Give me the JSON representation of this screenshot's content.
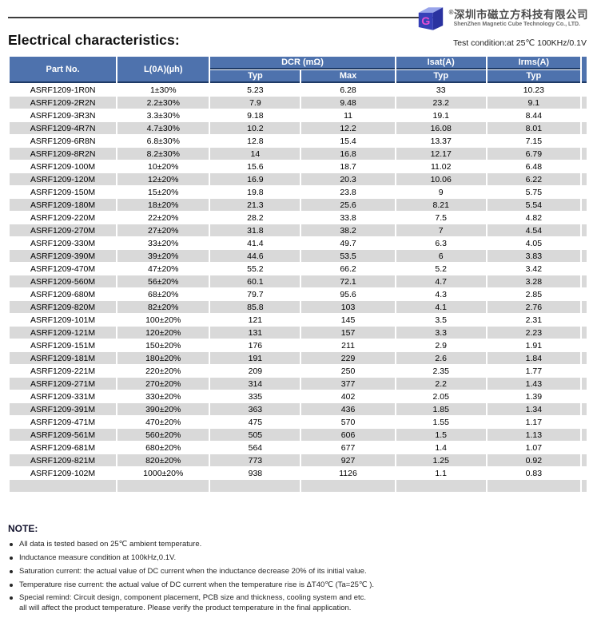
{
  "header": {
    "reg_mark": "®",
    "company_cn": "深圳市磁立方科技有限公司",
    "company_en": "ShenZhen Magnetic Cube Technology Co., LTD.",
    "title": "Electrical characteristics:",
    "test_condition": "Test condition:at 25℃ 100KHz/0.1V"
  },
  "table": {
    "columns": {
      "part_no": "Part No.",
      "l0a": "L(0A)(µh)",
      "dcr": "DCR (mΩ)",
      "typ": "Typ",
      "max": "Max",
      "isat": "Isat(A)",
      "irms": "Irms(A)"
    },
    "rows": [
      [
        "ASRF1209-1R0N",
        "1±30%",
        "5.23",
        "6.28",
        "33",
        "10.23"
      ],
      [
        "ASRF1209-2R2N",
        "2.2±30%",
        "7.9",
        "9.48",
        "23.2",
        "9.1"
      ],
      [
        "ASRF1209-3R3N",
        "3.3±30%",
        "9.18",
        "11",
        "19.1",
        "8.44"
      ],
      [
        "ASRF1209-4R7N",
        "4.7±30%",
        "10.2",
        "12.2",
        "16.08",
        "8.01"
      ],
      [
        "ASRF1209-6R8N",
        "6.8±30%",
        "12.8",
        "15.4",
        "13.37",
        "7.15"
      ],
      [
        "ASRF1209-8R2N",
        "8.2±30%",
        "14",
        "16.8",
        "12.17",
        "6.79"
      ],
      [
        "ASRF1209-100M",
        "10±20%",
        "15.6",
        "18.7",
        "11.02",
        "6.48"
      ],
      [
        "ASRF1209-120M",
        "12±20%",
        "16.9",
        "20.3",
        "10.06",
        "6.22"
      ],
      [
        "ASRF1209-150M",
        "15±20%",
        "19.8",
        "23.8",
        "9",
        "5.75"
      ],
      [
        "ASRF1209-180M",
        "18±20%",
        "21.3",
        "25.6",
        "8.21",
        "5.54"
      ],
      [
        "ASRF1209-220M",
        "22±20%",
        "28.2",
        "33.8",
        "7.5",
        "4.82"
      ],
      [
        "ASRF1209-270M",
        "27±20%",
        "31.8",
        "38.2",
        "7",
        "4.54"
      ],
      [
        "ASRF1209-330M",
        "33±20%",
        "41.4",
        "49.7",
        "6.3",
        "4.05"
      ],
      [
        "ASRF1209-390M",
        "39±20%",
        "44.6",
        "53.5",
        "6",
        "3.83"
      ],
      [
        "ASRF1209-470M",
        "47±20%",
        "55.2",
        "66.2",
        "5.2",
        "3.42"
      ],
      [
        "ASRF1209-560M",
        "56±20%",
        "60.1",
        "72.1",
        "4.7",
        "3.28"
      ],
      [
        "ASRF1209-680M",
        "68±20%",
        "79.7",
        "95.6",
        "4.3",
        "2.85"
      ],
      [
        "ASRF1209-820M",
        "82±20%",
        "85.8",
        "103",
        "4.1",
        "2.76"
      ],
      [
        "ASRF1209-101M",
        "100±20%",
        "121",
        "145",
        "3.5",
        "2.31"
      ],
      [
        "ASRF1209-121M",
        "120±20%",
        "131",
        "157",
        "3.3",
        "2.23"
      ],
      [
        "ASRF1209-151M",
        "150±20%",
        "176",
        "211",
        "2.9",
        "1.91"
      ],
      [
        "ASRF1209-181M",
        "180±20%",
        "191",
        "229",
        "2.6",
        "1.84"
      ],
      [
        "ASRF1209-221M",
        "220±20%",
        "209",
        "250",
        "2.35",
        "1.77"
      ],
      [
        "ASRF1209-271M",
        "270±20%",
        "314",
        "377",
        "2.2",
        "1.43"
      ],
      [
        "ASRF1209-331M",
        "330±20%",
        "335",
        "402",
        "2.05",
        "1.39"
      ],
      [
        "ASRF1209-391M",
        "390±20%",
        "363",
        "436",
        "1.85",
        "1.34"
      ],
      [
        "ASRF1209-471M",
        "470±20%",
        "475",
        "570",
        "1.55",
        "1.17"
      ],
      [
        "ASRF1209-561M",
        "560±20%",
        "505",
        "606",
        "1.5",
        "1.13"
      ],
      [
        "ASRF1209-681M",
        "680±20%",
        "564",
        "677",
        "1.4",
        "1.07"
      ],
      [
        "ASRF1209-821M",
        "820±20%",
        "773",
        "927",
        "1.25",
        "0.92"
      ],
      [
        "ASRF1209-102M",
        "1000±20%",
        "938",
        "1126",
        "1.1",
        "0.83"
      ]
    ],
    "trailing_empty_row": true
  },
  "notes": {
    "label": "NOTE:",
    "items": [
      "All data is tested based on 25℃ ambient temperature.",
      "Inductance measure condition at 100kHz,0.1V.",
      "Saturation current: the actual value of DC current when the inductance decrease 20% of its initial value.",
      "Temperature rise current: the actual value of DC current when the temperature rise is ΔT40℃ (Ta=25℃ ).",
      "Special remind: Circuit design, component placement, PCB size and thickness, cooling system and etc.\nall will affect the product temperature. Please verify the product temperature in the final application."
    ]
  },
  "colors": {
    "header_blue": "#4e72ad",
    "header_dark_line": "#1e3a66",
    "row_gray": "#d9d9d9",
    "logo_blue_top": "#98a4ea",
    "logo_blue_left": "#3640b8",
    "logo_blue_right": "#2a32a0",
    "logo_magenta": "#e44fd2"
  }
}
